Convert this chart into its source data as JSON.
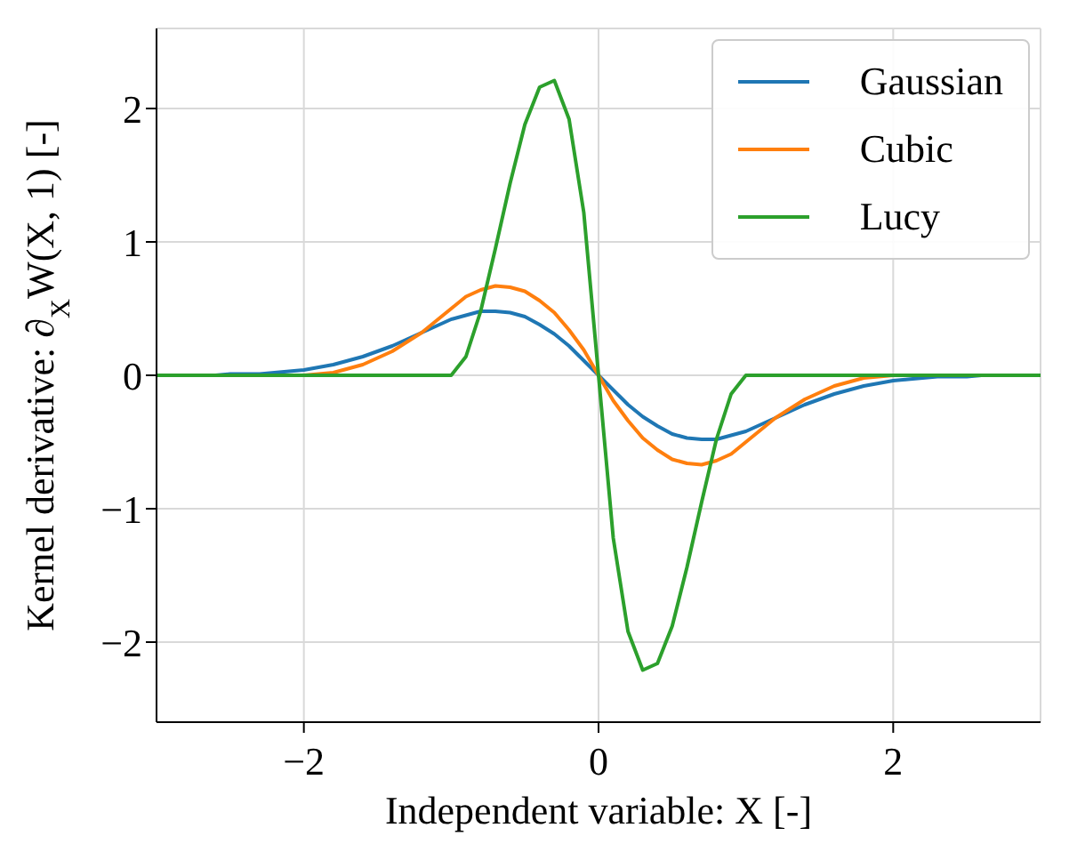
{
  "chart_data": {
    "type": "line",
    "xlabel": "Independent variable: X [-]",
    "ylabel": "Kernel derivative: ∂$_{X}$W(X, 1) [-]",
    "x": [
      -3,
      -2.9,
      -2.8,
      -2.7,
      -2.6,
      -2.5,
      -2.4,
      -2.3,
      -2.2,
      -2.1,
      -2,
      -1.9,
      -1.8,
      -1.7,
      -1.6,
      -1.5,
      -1.4,
      -1.3,
      -1.2,
      -1.1,
      -1,
      -0.9,
      -0.8,
      -0.7,
      -0.6,
      -0.5,
      -0.4,
      -0.3,
      -0.2,
      -0.1,
      0,
      0.1,
      0.2,
      0.3,
      0.4,
      0.5,
      0.6,
      0.7,
      0.8,
      0.9,
      1,
      1.1,
      1.2,
      1.3,
      1.4,
      1.5,
      1.6,
      1.7,
      1.8,
      1.9,
      2,
      2.1,
      2.2,
      2.3,
      2.4,
      2.5,
      2.6,
      2.7,
      2.8,
      2.9,
      3
    ],
    "series": [
      {
        "name": "Gaussian",
        "color": "#1f77b4",
        "values": [
          null,
          null,
          null,
          0,
          0,
          0.01,
          0.01,
          0.01,
          0.02,
          0.03,
          0.04,
          0.06,
          0.08,
          0.11,
          0.14,
          0.18,
          0.22,
          0.27,
          0.32,
          0.37,
          0.42,
          0.45,
          0.48,
          0.48,
          0.47,
          0.44,
          0.38,
          0.31,
          0.22,
          0.11,
          0,
          -0.11,
          -0.22,
          -0.31,
          -0.38,
          -0.44,
          -0.47,
          -0.48,
          -0.48,
          -0.45,
          -0.42,
          -0.37,
          -0.32,
          -0.27,
          -0.22,
          -0.18,
          -0.14,
          -0.11,
          -0.08,
          -0.06,
          -0.04,
          -0.03,
          -0.02,
          -0.01,
          -0.01,
          -0.01,
          0,
          0,
          null,
          null,
          null
        ]
      },
      {
        "name": "Cubic",
        "color": "#ff7f0e",
        "values": [
          null,
          null,
          null,
          null,
          null,
          null,
          null,
          null,
          null,
          0,
          0,
          0.01,
          0.02,
          0.05,
          0.08,
          0.13,
          0.18,
          0.25,
          0.32,
          0.41,
          0.5,
          0.59,
          0.64,
          0.67,
          0.66,
          0.63,
          0.56,
          0.47,
          0.34,
          0.19,
          0,
          -0.19,
          -0.34,
          -0.47,
          -0.56,
          -0.63,
          -0.66,
          -0.67,
          -0.64,
          -0.59,
          -0.5,
          -0.41,
          -0.32,
          -0.25,
          -0.18,
          -0.13,
          -0.08,
          -0.05,
          -0.02,
          -0.01,
          0,
          0,
          null,
          null,
          null,
          null,
          null,
          null,
          null,
          null,
          null
        ]
      },
      {
        "name": "Lucy",
        "color": "#2ca02c",
        "values": [
          0,
          0,
          0,
          0,
          0,
          0,
          0,
          0,
          0,
          0,
          0,
          0,
          0,
          0,
          0,
          0,
          0,
          0,
          0,
          0,
          0,
          0.14,
          0.48,
          0.95,
          1.44,
          1.88,
          2.16,
          2.21,
          1.92,
          1.22,
          0,
          -1.22,
          -1.92,
          -2.21,
          -2.16,
          -1.88,
          -1.44,
          -0.95,
          -0.48,
          -0.14,
          0,
          0,
          0,
          0,
          0,
          0,
          0,
          0,
          0,
          0,
          0,
          0,
          0,
          0,
          0,
          0,
          0,
          0,
          0,
          0,
          0
        ]
      }
    ],
    "xlim": [
      -3,
      3
    ],
    "xticks": [
      {
        "value": -2,
        "label": "−2"
      },
      0,
      2
    ],
    "ylim": [
      -2.6,
      2.6
    ],
    "yticks": [
      {
        "value": -2,
        "label": "−2"
      },
      {
        "value": -1,
        "label": "−1"
      },
      0,
      1,
      2
    ],
    "grid": true,
    "legend": "top right",
    "marker": "none",
    "line_style": "solid"
  }
}
